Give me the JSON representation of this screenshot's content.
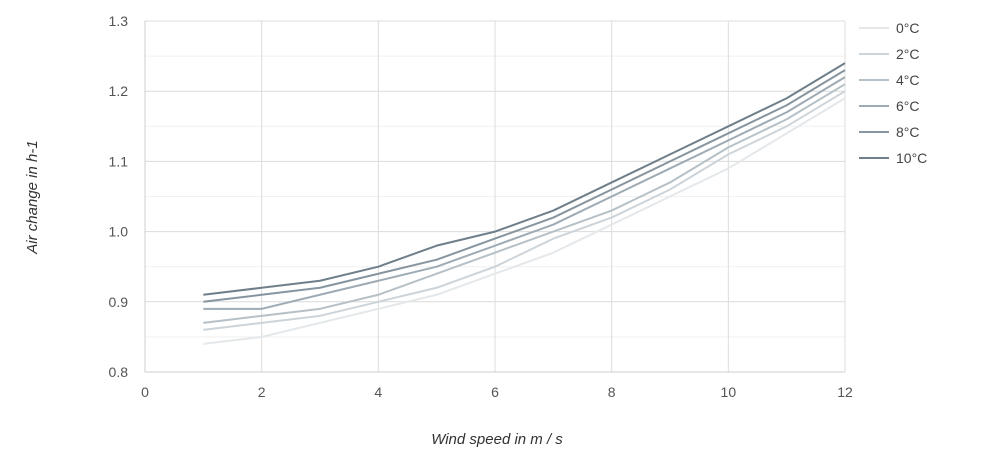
{
  "chart_data": {
    "type": "line",
    "xlabel": "Wind speed in m / s",
    "ylabel": "Air change in h-1",
    "xlim": [
      0,
      12
    ],
    "ylim": [
      0.8,
      1.3
    ],
    "xticks": [
      0,
      2,
      4,
      6,
      8,
      10,
      12
    ],
    "yticks": [
      "0.8",
      "0.9",
      "1.0",
      "1.1",
      "1.2",
      "1.3"
    ],
    "grid": true,
    "legend_position": "right",
    "x": [
      1,
      2,
      3,
      4,
      5,
      6,
      7,
      8,
      9,
      10,
      11,
      12
    ],
    "series": [
      {
        "name": "0°C",
        "color": "#e4e8eb",
        "values": [
          0.84,
          0.85,
          0.87,
          0.89,
          0.91,
          0.94,
          0.97,
          1.01,
          1.05,
          1.09,
          1.14,
          1.19
        ]
      },
      {
        "name": "2°C",
        "color": "#cdd4d9",
        "values": [
          0.86,
          0.87,
          0.88,
          0.9,
          0.92,
          0.95,
          0.99,
          1.02,
          1.06,
          1.11,
          1.15,
          1.2
        ]
      },
      {
        "name": "4°C",
        "color": "#b6c0c7",
        "values": [
          0.87,
          0.88,
          0.89,
          0.91,
          0.94,
          0.97,
          1.0,
          1.03,
          1.07,
          1.12,
          1.16,
          1.21
        ]
      },
      {
        "name": "6°C",
        "color": "#9eabb4",
        "values": [
          0.89,
          0.89,
          0.91,
          0.93,
          0.95,
          0.98,
          1.01,
          1.05,
          1.09,
          1.13,
          1.17,
          1.22
        ]
      },
      {
        "name": "8°C",
        "color": "#86959f",
        "values": [
          0.9,
          0.91,
          0.92,
          0.94,
          0.96,
          0.99,
          1.02,
          1.06,
          1.1,
          1.14,
          1.18,
          1.23
        ]
      },
      {
        "name": "10°C",
        "color": "#6f7f8a",
        "values": [
          0.91,
          0.92,
          0.93,
          0.95,
          0.98,
          1.0,
          1.03,
          1.07,
          1.11,
          1.15,
          1.19,
          1.24
        ]
      }
    ]
  }
}
